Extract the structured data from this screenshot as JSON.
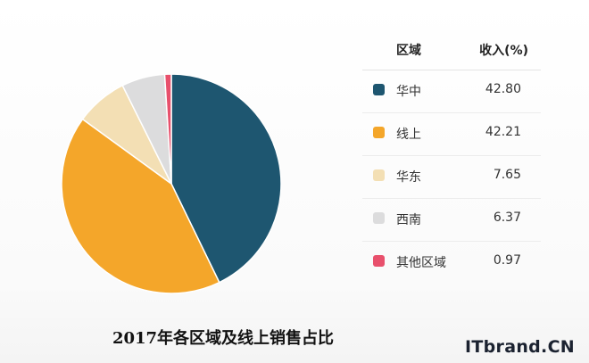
{
  "chart_data": {
    "type": "pie",
    "title": "2017年各区域及线上销售占比",
    "table_header": {
      "region": "区域",
      "value": "收入(%)"
    },
    "slices": [
      {
        "label": "华中",
        "value": 42.8,
        "value_text": "42.80",
        "color": "#1e5670"
      },
      {
        "label": "线上",
        "value": 42.21,
        "value_text": "42.21",
        "color": "#f4a62a"
      },
      {
        "label": "华东",
        "value": 7.65,
        "value_text": "7.65",
        "color": "#f3dfb4"
      },
      {
        "label": "西南",
        "value": 6.37,
        "value_text": "6.37",
        "color": "#dcdcdd"
      },
      {
        "label": "其他区域",
        "value": 0.97,
        "value_text": "0.97",
        "color": "#e8506c"
      }
    ]
  },
  "watermark": {
    "brand": "ITbrand.CN"
  }
}
